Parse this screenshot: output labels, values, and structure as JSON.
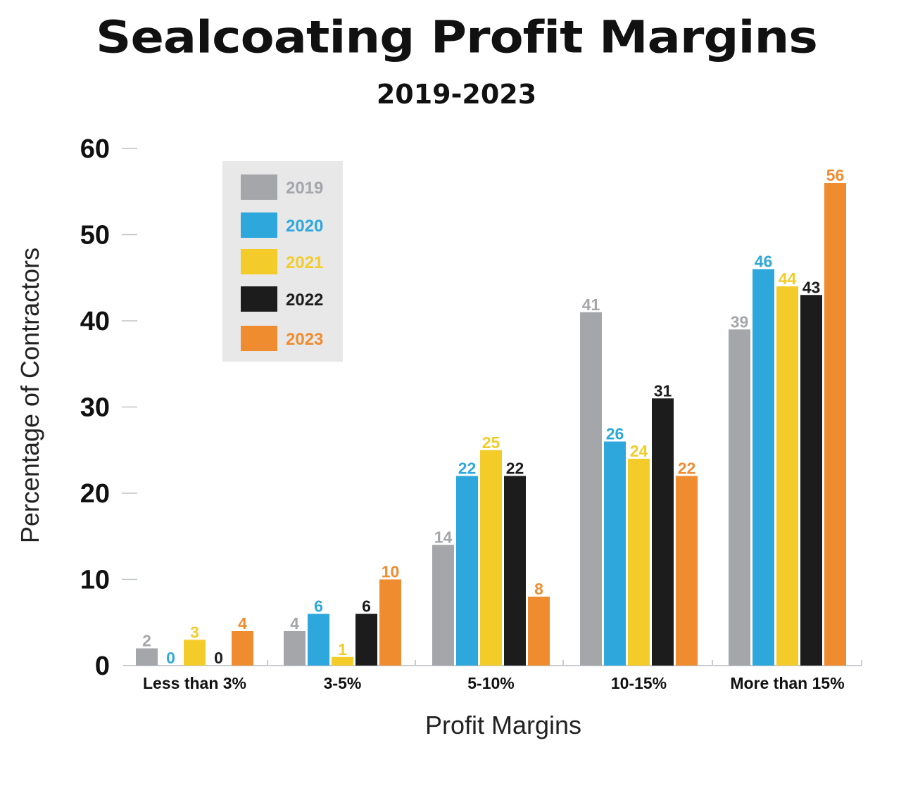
{
  "chart_data": {
    "type": "bar",
    "title": "Sealcoating Profit Margins",
    "subtitle": "2019-2023",
    "xlabel": "Profit Margins",
    "ylabel": "Percentage of Contractors",
    "ylim": [
      0,
      60
    ],
    "yticks": [
      0,
      10,
      20,
      30,
      40,
      50,
      60
    ],
    "categories": [
      "Less than 3%",
      "3-5%",
      "5-10%",
      "10-15%",
      "More than 15%"
    ],
    "series": [
      {
        "name": "2019",
        "color": "#a4a6aa",
        "values": [
          2,
          4,
          14,
          41,
          39
        ]
      },
      {
        "name": "2020",
        "color": "#2ea8dc",
        "values": [
          0,
          6,
          22,
          26,
          46
        ]
      },
      {
        "name": "2021",
        "color": "#f4cc2a",
        "values": [
          3,
          1,
          25,
          24,
          44
        ]
      },
      {
        "name": "2022",
        "color": "#1c1c1c",
        "values": [
          0,
          6,
          22,
          31,
          43
        ]
      },
      {
        "name": "2023",
        "color": "#ef8c30",
        "values": [
          4,
          10,
          8,
          22,
          56
        ]
      }
    ],
    "legend_position": "top-left"
  }
}
